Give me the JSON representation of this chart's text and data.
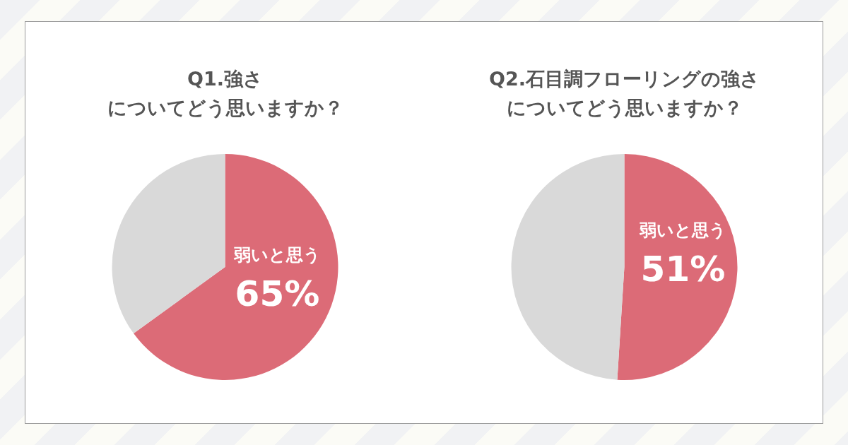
{
  "chart_data": [
    {
      "type": "pie",
      "title": "Q1.強さ",
      "subtitle": "についてどう思いますか？",
      "categories": [
        "弱いと思う",
        null
      ],
      "values": [
        65,
        35
      ],
      "colors": [
        "#dc6b77",
        "#d9d9d9"
      ],
      "value_labels": [
        "65%",
        null
      ],
      "legend": false
    },
    {
      "type": "pie",
      "title": "Q2.石目調フローリングの強さ",
      "subtitle": "についてどう思いますか？",
      "categories": [
        "弱いと思う",
        null
      ],
      "values": [
        51,
        49
      ],
      "colors": [
        "#dc6b77",
        "#d9d9d9"
      ],
      "value_labels": [
        "51%",
        null
      ],
      "legend": false
    }
  ]
}
